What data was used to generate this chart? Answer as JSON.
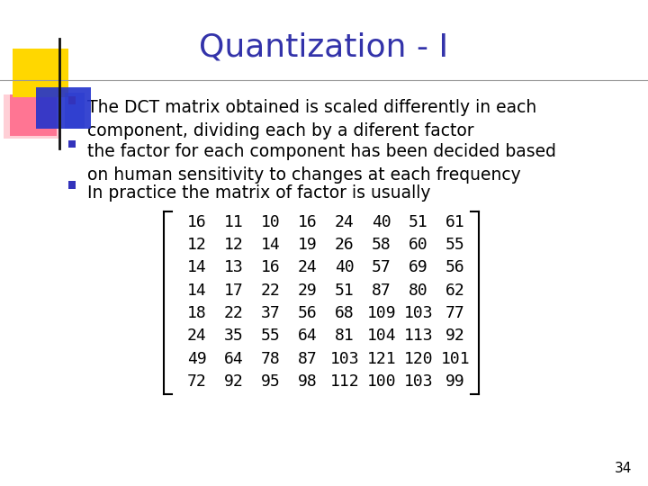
{
  "title": "Quantization - I",
  "title_color": "#3333AA",
  "title_fontsize": 26,
  "bullet_points": [
    "The DCT matrix obtained is scaled differently in each\ncomponent, dividing each by a diferent factor",
    "the factor for each component has been decided based\non human sensitivity to changes at each frequency",
    "In practice the matrix of factor is usually"
  ],
  "matrix": [
    [
      16,
      11,
      10,
      16,
      24,
      40,
      51,
      61
    ],
    [
      12,
      12,
      14,
      19,
      26,
      58,
      60,
      55
    ],
    [
      14,
      13,
      16,
      24,
      40,
      57,
      69,
      56
    ],
    [
      14,
      17,
      22,
      29,
      51,
      87,
      80,
      62
    ],
    [
      18,
      22,
      37,
      56,
      68,
      109,
      103,
      77
    ],
    [
      24,
      35,
      55,
      64,
      81,
      104,
      113,
      92
    ],
    [
      49,
      64,
      78,
      87,
      103,
      121,
      120,
      101
    ],
    [
      72,
      92,
      95,
      98,
      112,
      100,
      103,
      99
    ]
  ],
  "bullet_color": "#3333BB",
  "text_color": "#000000",
  "bg_color": "#FFFFFF",
  "slide_number": "34",
  "bullet_fontsize": 13.5,
  "matrix_fontsize": 13,
  "header_line_color": "#999999",
  "logo_yellow": "#FFD700",
  "logo_pink": "#FF6688",
  "logo_blue": "#2233CC",
  "logo_yellow2": "#FFB300",
  "vline_color": "#111111"
}
